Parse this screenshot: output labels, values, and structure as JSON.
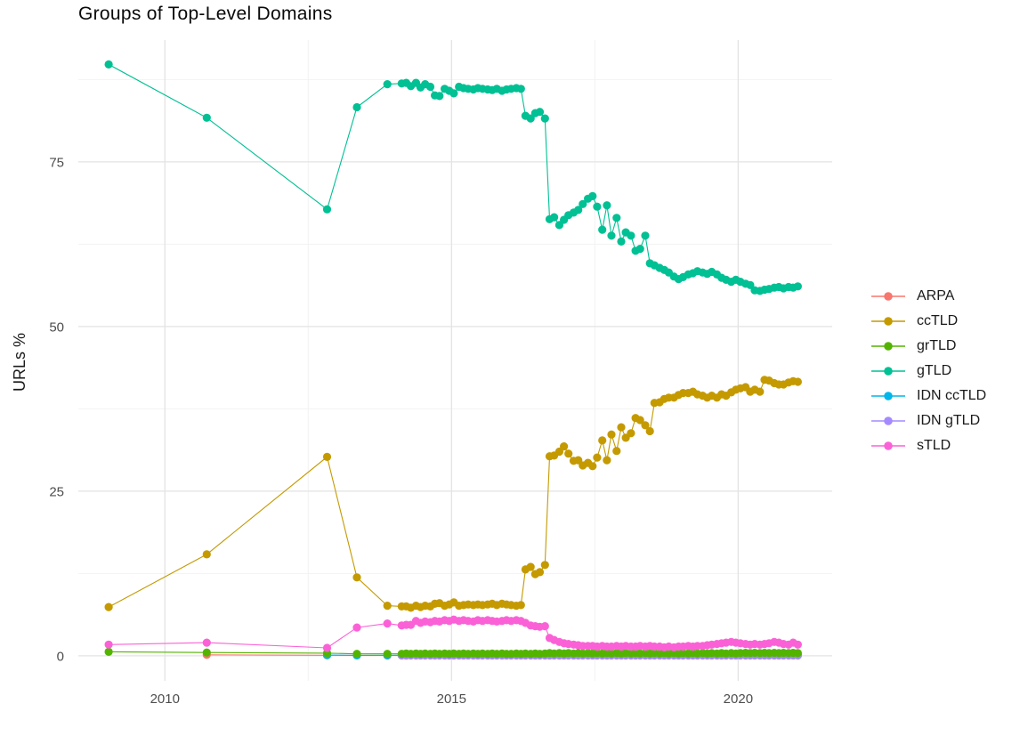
{
  "chart_data": {
    "type": "line",
    "title": "Groups of Top-Level Domains",
    "xlabel": "",
    "ylabel": "URLs %",
    "legend_position": "right",
    "grid": true,
    "background": "#ffffff",
    "gridline_major_color": "#e3e3e3",
    "gridline_minor_color": "#f2f2f2",
    "tick_label_color": "#4d4d4d",
    "x_ticks": [
      2010,
      2015,
      2020
    ],
    "x_ticks_minor": [
      2012.5,
      2017.5
    ],
    "y_ticks": [
      0,
      25,
      50,
      75
    ],
    "y_ticks_minor": [
      12.5,
      37.5,
      62.5,
      87.5
    ],
    "x_domain": [
      2008.49,
      2021.64
    ],
    "y_domain": [
      -3.8,
      93.5
    ],
    "series": [
      {
        "name": "ARPA",
        "color": "#F8766D",
        "x": [
          2010.73,
          2012.83,
          2013.35,
          2013.88,
          2014.21
        ],
        "y": [
          0.15,
          0.08,
          0.06,
          0.05,
          0.05
        ]
      },
      {
        "name": "ccTLD",
        "color": "#C49A00",
        "x": [
          2009.02,
          2010.73,
          2012.83,
          2013.35,
          2013.88,
          2014.13,
          2014.21,
          2014.29,
          2014.38,
          2014.46,
          2014.54,
          2014.63,
          2014.71,
          2014.79,
          2014.88,
          2014.96,
          2015.04,
          2015.13,
          2015.21,
          2015.29,
          2015.38,
          2015.46,
          2015.54,
          2015.63,
          2015.71,
          2015.79,
          2015.88,
          2015.96,
          2016.04,
          2016.13,
          2016.21,
          2016.29,
          2016.38,
          2016.46,
          2016.54,
          2016.63,
          2016.71,
          2016.79,
          2016.88,
          2016.96,
          2017.04,
          2017.13,
          2017.21,
          2017.29,
          2017.38,
          2017.46,
          2017.54,
          2017.63,
          2017.71,
          2017.79,
          2017.88,
          2017.96,
          2018.04,
          2018.13,
          2018.21,
          2018.29,
          2018.38,
          2018.46,
          2018.54,
          2018.63,
          2018.71,
          2018.79,
          2018.88,
          2018.96,
          2019.04,
          2019.13,
          2019.21,
          2019.29,
          2019.38,
          2019.46,
          2019.54,
          2019.63,
          2019.71,
          2019.79,
          2019.88,
          2019.96,
          2020.04,
          2020.13,
          2020.21,
          2020.29,
          2020.38,
          2020.46,
          2020.54,
          2020.63,
          2020.71,
          2020.79,
          2020.88,
          2020.96,
          2021.04
        ],
        "y": [
          7.4,
          15.4,
          30.2,
          11.9,
          7.6,
          7.5,
          7.5,
          7.3,
          7.6,
          7.4,
          7.6,
          7.5,
          7.9,
          8.0,
          7.6,
          7.8,
          8.1,
          7.6,
          7.7,
          7.8,
          7.7,
          7.8,
          7.7,
          7.8,
          7.9,
          7.7,
          7.9,
          7.8,
          7.7,
          7.6,
          7.7,
          13.1,
          13.5,
          12.4,
          12.7,
          13.8,
          30.3,
          30.4,
          31.0,
          31.8,
          30.7,
          29.6,
          29.7,
          28.9,
          29.3,
          28.8,
          30.1,
          32.7,
          29.7,
          33.6,
          31.1,
          34.7,
          33.1,
          33.8,
          36.1,
          35.8,
          35.0,
          34.1,
          38.4,
          38.5,
          39.0,
          39.2,
          39.2,
          39.6,
          39.9,
          39.9,
          40.1,
          39.7,
          39.5,
          39.2,
          39.5,
          39.2,
          39.7,
          39.5,
          40.0,
          40.4,
          40.6,
          40.8,
          40.1,
          40.4,
          40.1,
          41.9,
          41.8,
          41.4,
          41.2,
          41.2,
          41.5,
          41.7,
          41.6
        ]
      },
      {
        "name": "grTLD",
        "color": "#53B400",
        "x": [
          2009.02,
          2010.73,
          2012.83,
          2013.35,
          2013.88,
          2014.13,
          2014.21,
          2014.29,
          2014.38,
          2014.46,
          2014.54,
          2014.63,
          2014.71,
          2014.79,
          2014.88,
          2014.96,
          2015.04,
          2015.13,
          2015.21,
          2015.29,
          2015.38,
          2015.46,
          2015.54,
          2015.63,
          2015.71,
          2015.79,
          2015.88,
          2015.96,
          2016.04,
          2016.13,
          2016.21,
          2016.29,
          2016.38,
          2016.46,
          2016.54,
          2016.63,
          2016.71,
          2016.79,
          2016.88,
          2016.96,
          2017.04,
          2017.13,
          2017.21,
          2017.29,
          2017.38,
          2017.46,
          2017.54,
          2017.63,
          2017.71,
          2017.79,
          2017.88,
          2017.96,
          2018.04,
          2018.13,
          2018.21,
          2018.29,
          2018.38,
          2018.46,
          2018.54,
          2018.63,
          2018.71,
          2018.79,
          2018.88,
          2018.96,
          2019.04,
          2019.13,
          2019.21,
          2019.29,
          2019.38,
          2019.46,
          2019.54,
          2019.63,
          2019.71,
          2019.79,
          2019.88,
          2019.96,
          2020.04,
          2020.13,
          2020.21,
          2020.29,
          2020.38,
          2020.46,
          2020.54,
          2020.63,
          2020.71,
          2020.79,
          2020.88,
          2020.96,
          2021.04
        ],
        "y": [
          0.6,
          0.5,
          0.4,
          0.3,
          0.3,
          0.3,
          0.35,
          0.3,
          0.35,
          0.3,
          0.35,
          0.3,
          0.35,
          0.3,
          0.35,
          0.3,
          0.35,
          0.3,
          0.35,
          0.3,
          0.35,
          0.3,
          0.35,
          0.3,
          0.35,
          0.3,
          0.35,
          0.3,
          0.3,
          0.35,
          0.3,
          0.35,
          0.3,
          0.35,
          0.3,
          0.35,
          0.4,
          0.35,
          0.4,
          0.35,
          0.4,
          0.35,
          0.4,
          0.35,
          0.4,
          0.35,
          0.4,
          0.35,
          0.4,
          0.35,
          0.4,
          0.35,
          0.4,
          0.35,
          0.4,
          0.35,
          0.4,
          0.35,
          0.4,
          0.35,
          0.4,
          0.35,
          0.4,
          0.35,
          0.4,
          0.35,
          0.4,
          0.35,
          0.4,
          0.35,
          0.4,
          0.35,
          0.4,
          0.35,
          0.4,
          0.35,
          0.4,
          0.45,
          0.4,
          0.45,
          0.4,
          0.45,
          0.4,
          0.45,
          0.4,
          0.45,
          0.4,
          0.45,
          0.4
        ]
      },
      {
        "name": "gTLD",
        "color": "#00C094",
        "x": [
          2009.02,
          2010.73,
          2012.83,
          2013.35,
          2013.88,
          2014.13,
          2014.21,
          2014.29,
          2014.38,
          2014.46,
          2014.54,
          2014.63,
          2014.71,
          2014.79,
          2014.88,
          2014.96,
          2015.04,
          2015.13,
          2015.21,
          2015.29,
          2015.38,
          2015.46,
          2015.54,
          2015.63,
          2015.71,
          2015.79,
          2015.88,
          2015.96,
          2016.04,
          2016.13,
          2016.21,
          2016.29,
          2016.38,
          2016.46,
          2016.54,
          2016.63,
          2016.71,
          2016.79,
          2016.88,
          2016.96,
          2017.04,
          2017.13,
          2017.21,
          2017.29,
          2017.38,
          2017.46,
          2017.54,
          2017.63,
          2017.71,
          2017.79,
          2017.88,
          2017.96,
          2018.04,
          2018.13,
          2018.21,
          2018.29,
          2018.38,
          2018.46,
          2018.54,
          2018.63,
          2018.71,
          2018.79,
          2018.88,
          2018.96,
          2019.04,
          2019.13,
          2019.21,
          2019.29,
          2019.38,
          2019.46,
          2019.54,
          2019.63,
          2019.71,
          2019.79,
          2019.88,
          2019.96,
          2020.04,
          2020.13,
          2020.21,
          2020.29,
          2020.38,
          2020.46,
          2020.54,
          2020.63,
          2020.71,
          2020.79,
          2020.88,
          2020.96,
          2021.04
        ],
        "y": [
          89.8,
          81.7,
          67.8,
          83.3,
          86.8,
          86.9,
          87.0,
          86.5,
          87.0,
          86.3,
          86.8,
          86.4,
          85.1,
          85.0,
          86.1,
          85.8,
          85.4,
          86.4,
          86.2,
          86.1,
          86.0,
          86.2,
          86.1,
          86.0,
          85.9,
          86.1,
          85.8,
          86.0,
          86.1,
          86.2,
          86.1,
          82.0,
          81.6,
          82.4,
          82.6,
          81.6,
          66.3,
          66.6,
          65.4,
          66.2,
          66.9,
          67.3,
          67.7,
          68.6,
          69.4,
          69.8,
          68.2,
          64.7,
          68.4,
          63.8,
          66.5,
          62.9,
          64.3,
          63.8,
          61.5,
          61.8,
          63.8,
          59.6,
          59.3,
          58.9,
          58.6,
          58.2,
          57.6,
          57.2,
          57.5,
          57.9,
          58.1,
          58.4,
          58.2,
          58.0,
          58.3,
          57.9,
          57.4,
          57.1,
          56.8,
          57.1,
          56.8,
          56.5,
          56.3,
          55.5,
          55.4,
          55.6,
          55.7,
          55.9,
          56.0,
          55.8,
          56.0,
          55.9,
          56.1
        ]
      },
      {
        "name": "IDN ccTLD",
        "color": "#00B6EB",
        "x": [
          2012.83,
          2013.35,
          2013.88,
          2014.13,
          2014.21,
          2014.29,
          2014.38,
          2014.46,
          2014.54,
          2014.63,
          2014.71,
          2014.79,
          2014.88,
          2014.96,
          2015.04,
          2015.13,
          2015.21,
          2015.29,
          2015.38,
          2015.46,
          2015.54,
          2015.63,
          2015.71,
          2015.79,
          2015.88,
          2015.96,
          2016.04,
          2016.13,
          2016.21,
          2016.29,
          2016.38,
          2016.46,
          2016.54,
          2016.63,
          2016.71,
          2016.79,
          2016.88,
          2016.96,
          2017.04,
          2017.13,
          2017.21,
          2017.29,
          2017.38,
          2017.46,
          2017.54,
          2017.63,
          2017.71,
          2017.79,
          2017.88,
          2017.96,
          2018.04,
          2018.13,
          2018.21,
          2018.29,
          2018.38,
          2018.46,
          2018.54,
          2018.63,
          2018.71,
          2018.79,
          2018.88,
          2018.96,
          2019.04,
          2019.13,
          2019.21,
          2019.29,
          2019.38,
          2019.46,
          2019.54,
          2019.63,
          2019.71,
          2019.79,
          2019.88,
          2019.96,
          2020.04,
          2020.13,
          2020.21,
          2020.29,
          2020.38,
          2020.46,
          2020.54,
          2020.63,
          2020.71,
          2020.79,
          2020.88,
          2020.96,
          2021.04
        ],
        "y": [
          0.12,
          0.06,
          0.08,
          0.08,
          0.1,
          0.08,
          0.1,
          0.08,
          0.1,
          0.08,
          0.1,
          0.08,
          0.1,
          0.08,
          0.1,
          0.08,
          0.1,
          0.08,
          0.1,
          0.08,
          0.1,
          0.08,
          0.1,
          0.08,
          0.1,
          0.08,
          0.1,
          0.08,
          0.1,
          0.08,
          0.1,
          0.08,
          0.1,
          0.08,
          0.1,
          0.08,
          0.1,
          0.08,
          0.1,
          0.08,
          0.1,
          0.08,
          0.1,
          0.08,
          0.1,
          0.08,
          0.1,
          0.08,
          0.1,
          0.08,
          0.1,
          0.08,
          0.1,
          0.08,
          0.1,
          0.08,
          0.1,
          0.08,
          0.1,
          0.08,
          0.1,
          0.08,
          0.1,
          0.08,
          0.1,
          0.08,
          0.1,
          0.08,
          0.1,
          0.08,
          0.1,
          0.08,
          0.1,
          0.08,
          0.1,
          0.08,
          0.1,
          0.08,
          0.1,
          0.08,
          0.1,
          0.08,
          0.1,
          0.08,
          0.1,
          0.08,
          0.1
        ]
      },
      {
        "name": "IDN gTLD",
        "color": "#A58AFF",
        "x": [
          2014.13,
          2014.21,
          2014.29,
          2014.38,
          2014.46,
          2014.54,
          2014.63,
          2014.71,
          2014.79,
          2014.88,
          2014.96,
          2015.04,
          2015.13,
          2015.21,
          2015.29,
          2015.38,
          2015.46,
          2015.54,
          2015.63,
          2015.71,
          2015.79,
          2015.88,
          2015.96,
          2016.04,
          2016.13,
          2016.21,
          2016.29,
          2016.38,
          2016.46,
          2016.54,
          2016.63,
          2016.71,
          2016.79,
          2016.88,
          2016.96,
          2017.04,
          2017.13,
          2017.21,
          2017.29,
          2017.38,
          2017.46,
          2017.54,
          2017.63,
          2017.71,
          2017.79,
          2017.88,
          2017.96,
          2018.04,
          2018.13,
          2018.21,
          2018.29,
          2018.38,
          2018.46,
          2018.54,
          2018.63,
          2018.71,
          2018.79,
          2018.88,
          2018.96,
          2019.04,
          2019.13,
          2019.21,
          2019.29,
          2019.38,
          2019.46,
          2019.54,
          2019.63,
          2019.71,
          2019.79,
          2019.88,
          2019.96,
          2020.04,
          2020.13,
          2020.21,
          2020.29,
          2020.38,
          2020.46,
          2020.54,
          2020.63,
          2020.71,
          2020.79,
          2020.88,
          2020.96,
          2021.04
        ],
        "y": [
          0.05,
          0.05,
          0.05,
          0.05,
          0.05,
          0.05,
          0.05,
          0.05,
          0.05,
          0.05,
          0.05,
          0.05,
          0.05,
          0.05,
          0.05,
          0.05,
          0.05,
          0.05,
          0.05,
          0.05,
          0.05,
          0.05,
          0.05,
          0.05,
          0.05,
          0.05,
          0.05,
          0.05,
          0.05,
          0.05,
          0.05,
          0.05,
          0.05,
          0.05,
          0.05,
          0.05,
          0.05,
          0.05,
          0.05,
          0.05,
          0.05,
          0.05,
          0.05,
          0.05,
          0.05,
          0.05,
          0.05,
          0.05,
          0.05,
          0.05,
          0.05,
          0.05,
          0.05,
          0.05,
          0.05,
          0.05,
          0.05,
          0.05,
          0.05,
          0.05,
          0.05,
          0.05,
          0.05,
          0.05,
          0.05,
          0.05,
          0.05,
          0.05,
          0.05,
          0.05,
          0.05,
          0.05,
          0.05,
          0.05,
          0.05,
          0.05,
          0.05,
          0.05,
          0.05,
          0.05,
          0.05,
          0.05,
          0.05,
          0.05
        ]
      },
      {
        "name": "sTLD",
        "color": "#FB61D7",
        "x": [
          2009.02,
          2010.73,
          2012.83,
          2013.35,
          2013.88,
          2014.13,
          2014.21,
          2014.29,
          2014.38,
          2014.46,
          2014.54,
          2014.63,
          2014.71,
          2014.79,
          2014.88,
          2014.96,
          2015.04,
          2015.13,
          2015.21,
          2015.29,
          2015.38,
          2015.46,
          2015.54,
          2015.63,
          2015.71,
          2015.79,
          2015.88,
          2015.96,
          2016.04,
          2016.13,
          2016.21,
          2016.29,
          2016.38,
          2016.46,
          2016.54,
          2016.63,
          2016.71,
          2016.79,
          2016.88,
          2016.96,
          2017.04,
          2017.13,
          2017.21,
          2017.29,
          2017.38,
          2017.46,
          2017.54,
          2017.63,
          2017.71,
          2017.79,
          2017.88,
          2017.96,
          2018.04,
          2018.13,
          2018.21,
          2018.29,
          2018.38,
          2018.46,
          2018.54,
          2018.63,
          2018.71,
          2018.79,
          2018.88,
          2018.96,
          2019.04,
          2019.13,
          2019.21,
          2019.29,
          2019.38,
          2019.46,
          2019.54,
          2019.63,
          2019.71,
          2019.79,
          2019.88,
          2019.96,
          2020.04,
          2020.13,
          2020.21,
          2020.29,
          2020.38,
          2020.46,
          2020.54,
          2020.63,
          2020.71,
          2020.79,
          2020.88,
          2020.96,
          2021.04
        ],
        "y": [
          1.7,
          2.0,
          1.2,
          4.3,
          4.9,
          4.6,
          4.7,
          4.7,
          5.3,
          5.0,
          5.2,
          5.1,
          5.3,
          5.2,
          5.4,
          5.3,
          5.5,
          5.3,
          5.4,
          5.3,
          5.2,
          5.4,
          5.3,
          5.4,
          5.3,
          5.2,
          5.3,
          5.4,
          5.3,
          5.4,
          5.3,
          5.0,
          4.6,
          4.5,
          4.4,
          4.5,
          2.7,
          2.4,
          2.1,
          1.9,
          1.8,
          1.7,
          1.6,
          1.5,
          1.5,
          1.5,
          1.4,
          1.5,
          1.4,
          1.4,
          1.5,
          1.4,
          1.5,
          1.4,
          1.4,
          1.5,
          1.4,
          1.5,
          1.4,
          1.4,
          1.3,
          1.4,
          1.3,
          1.4,
          1.4,
          1.5,
          1.4,
          1.5,
          1.5,
          1.6,
          1.7,
          1.8,
          1.9,
          2.0,
          2.1,
          2.0,
          1.9,
          1.8,
          1.7,
          1.8,
          1.7,
          1.8,
          1.9,
          2.1,
          2.0,
          1.8,
          1.7,
          2.0,
          1.7
        ]
      }
    ]
  }
}
